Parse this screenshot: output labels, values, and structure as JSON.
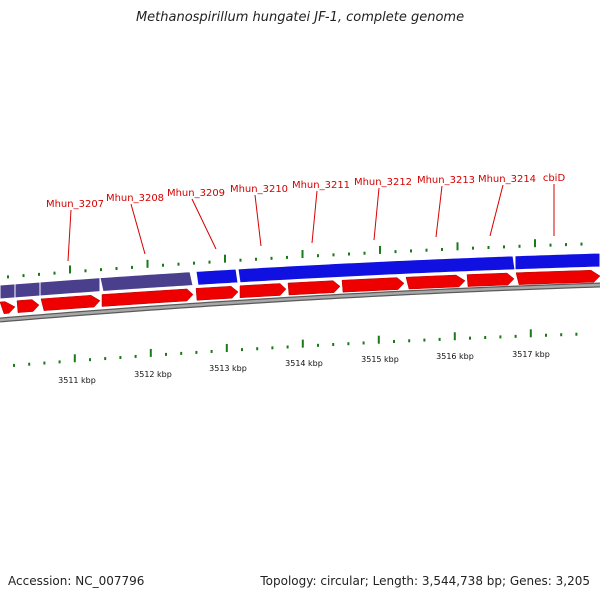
{
  "title": "Methanospirillum hungatei JF-1, complete genome",
  "footer": {
    "accession": "Accession: NC_007796",
    "topology": "Topology: circular; Length: 3,544,738 bp; Genes: 3,205"
  },
  "colors": {
    "gene_label": "#d40000",
    "blue_band": "#1010e0",
    "purple_band": "#4a3f8c",
    "red_arrow": "#ee0000",
    "backbone": "#808080",
    "tick": "#1a7a1a"
  },
  "gene_labels": [
    "Mhun_3207",
    "Mhun_3208",
    "Mhun_3209",
    "Mhun_3210",
    "Mhun_3211",
    "Mhun_3212",
    "Mhun_3213",
    "Mhun_3214",
    "cbiD"
  ],
  "position_labels": [
    "3511 kbp",
    "3512 kbp",
    "3513 kbp",
    "3514 kbp",
    "3515 kbp",
    "3516 kbp",
    "3517 kbp"
  ]
}
